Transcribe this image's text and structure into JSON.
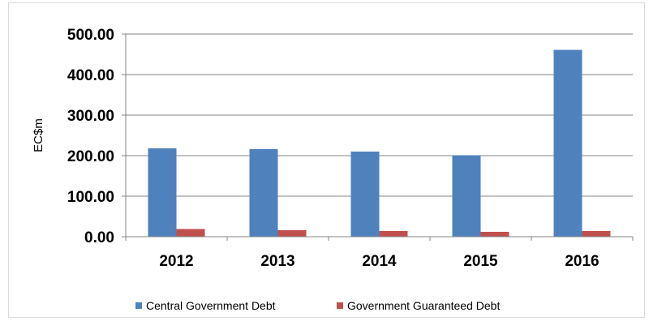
{
  "chart_data": {
    "type": "bar",
    "title": "",
    "xlabel": "",
    "ylabel": "EC$m",
    "categories": [
      "2012",
      "2013",
      "2014",
      "2015",
      "2016"
    ],
    "y_tick_labels": [
      "0.00",
      "100.00",
      "200.00",
      "300.00",
      "400.00",
      "500.00"
    ],
    "ylim": [
      0,
      500
    ],
    "grid": true,
    "legend_position": "bottom",
    "series": [
      {
        "name": "Central Government Debt",
        "color": "#4f81bd",
        "values": [
          218,
          216,
          210,
          201,
          461
        ]
      },
      {
        "name": "Government Guaranteed Debt",
        "color": "#c0504d",
        "values": [
          19,
          16,
          14,
          12,
          14
        ]
      }
    ]
  }
}
